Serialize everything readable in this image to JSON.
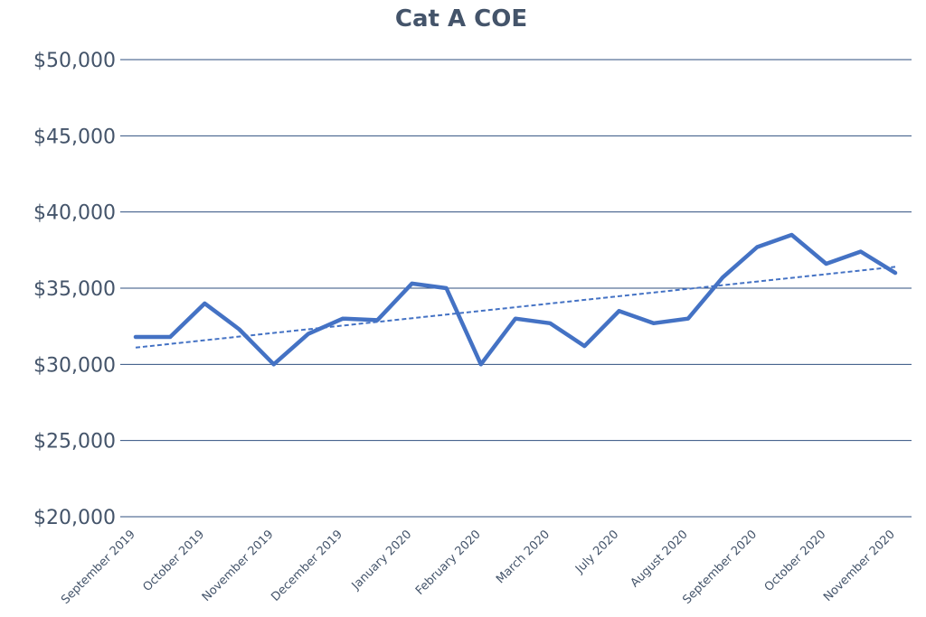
{
  "chart_data": {
    "type": "line",
    "title": "Cat A COE",
    "xlabel": "",
    "ylabel": "",
    "ylim": [
      20000,
      50000
    ],
    "y_ticks": [
      {
        "value": 20000,
        "label": "$20,000"
      },
      {
        "value": 25000,
        "label": "$25,000"
      },
      {
        "value": 30000,
        "label": "$30,000"
      },
      {
        "value": 35000,
        "label": "$35,000"
      },
      {
        "value": 40000,
        "label": "$40,000"
      },
      {
        "value": 45000,
        "label": "$45,000"
      },
      {
        "value": 50000,
        "label": "$50,000"
      }
    ],
    "grid": true,
    "legend": "none",
    "x_tick_labels": [
      "September 2019",
      "October 2019",
      "November 2019",
      "December 2019",
      "January 2020",
      "February 2020",
      "March 2020",
      "July 2020",
      "August 2020",
      "September 2020",
      "October 2020",
      "November 2020"
    ],
    "series": [
      {
        "values": [
          31800,
          31800,
          34000,
          32300,
          30000,
          32000,
          33000,
          32900,
          35300,
          35000,
          30000,
          33000,
          32700,
          31200,
          33500,
          32700,
          33000,
          35700,
          37700,
          38500,
          36600,
          37400,
          36000
        ],
        "color": "#4472c4"
      }
    ],
    "trendline": {
      "type": "linear",
      "start": 31100,
      "end": 36400,
      "color": "#4472c4",
      "style": "dashed"
    }
  }
}
